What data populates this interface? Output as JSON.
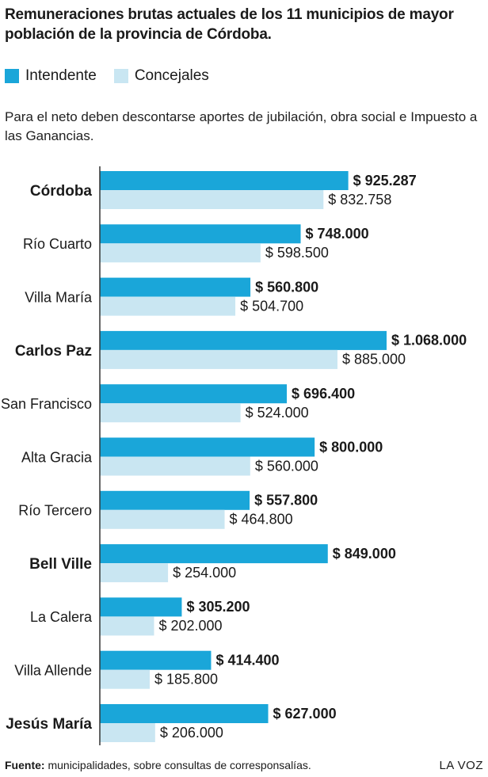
{
  "title": "Remuneraciones brutas actuales de los 11 municipios de mayor población de la provincia de Córdoba.",
  "subtitle": "Para el neto deben descontarse aportes de jubilación, obra social e Impuesto a las Ganancias.",
  "legend": {
    "intendente": "Intendente",
    "concejales": "Concejales"
  },
  "colors": {
    "intendente": "#1aa6d9",
    "concejales": "#c9e6f2",
    "axis": "#333333"
  },
  "footer": {
    "source_label": "Fuente:",
    "source_text": "municipalidades, sobre consultas de corresponsalías.",
    "brand": "LA VOZ"
  },
  "chart_data": {
    "type": "bar",
    "orientation": "horizontal",
    "categories": [
      "Córdoba",
      "Río Cuarto",
      "Villa María",
      "Carlos Paz",
      "San Francisco",
      "Alta Gracia",
      "Río Tercero",
      "Bell Ville",
      "La Calera",
      "Villa Allende",
      "Jesús María"
    ],
    "bold_categories": [
      "Córdoba",
      "Carlos Paz",
      "Bell Ville",
      "Jesús María"
    ],
    "series": [
      {
        "name": "Intendente",
        "values": [
          925287,
          748000,
          560800,
          1068000,
          696400,
          800000,
          557800,
          849000,
          305200,
          414400,
          627000
        ],
        "labels": [
          "$ 925.287",
          "$ 748.000",
          "$ 560.800",
          "$ 1.068.000",
          "$ 696.400",
          "$ 800.000",
          "$ 557.800",
          "$ 849.000",
          "$ 305.200",
          "$ 414.400",
          "$ 627.000"
        ]
      },
      {
        "name": "Concejales",
        "values": [
          832758,
          598500,
          504700,
          885000,
          524000,
          560000,
          464800,
          254000,
          202000,
          185800,
          206000
        ],
        "labels": [
          "$ 832.758",
          "$ 598.500",
          "$ 504.700",
          "$ 885.000",
          "$ 524.000",
          "$ 560.000",
          "$ 464.800",
          "$ 254.000",
          "$ 202.000",
          "$ 185.800",
          "$ 206.000"
        ]
      }
    ],
    "xlim": [
      0,
      1068000
    ],
    "grid": false,
    "legend_position": "top-left"
  }
}
